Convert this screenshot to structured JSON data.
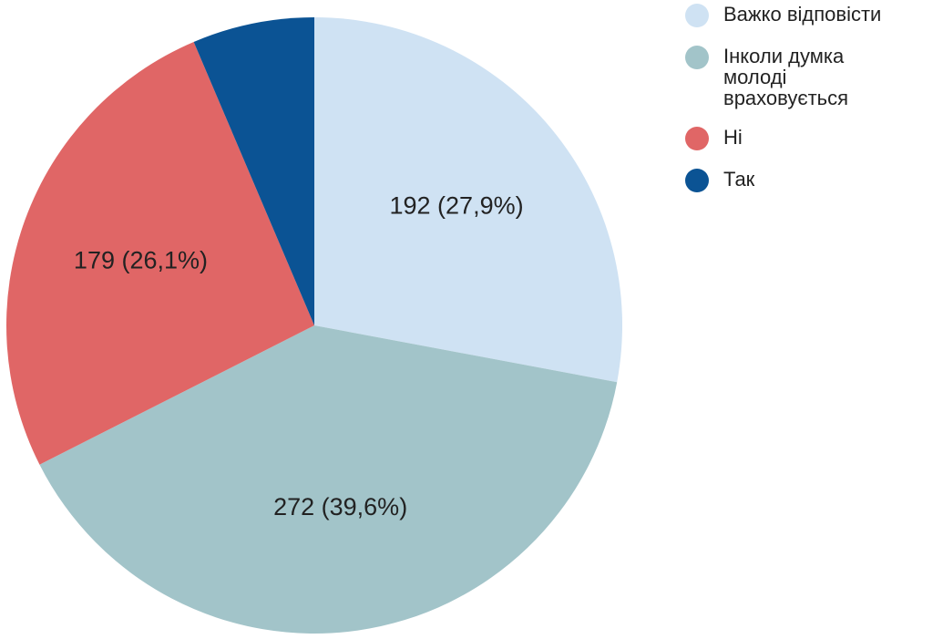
{
  "chart_data": {
    "type": "pie",
    "categories": [
      "Важко відповісти",
      "Інколи думка молоді враховується",
      "Ні",
      "Так"
    ],
    "values": [
      192,
      272,
      179,
      44
    ],
    "value_labels": [
      "192 (27,9%)",
      "272 (39,6%)",
      "179 (26,1%)",
      null
    ],
    "colors": [
      "#cfe2f3",
      "#a2c4c9",
      "#e06666",
      "#0b5394"
    ],
    "legend": "right"
  }
}
